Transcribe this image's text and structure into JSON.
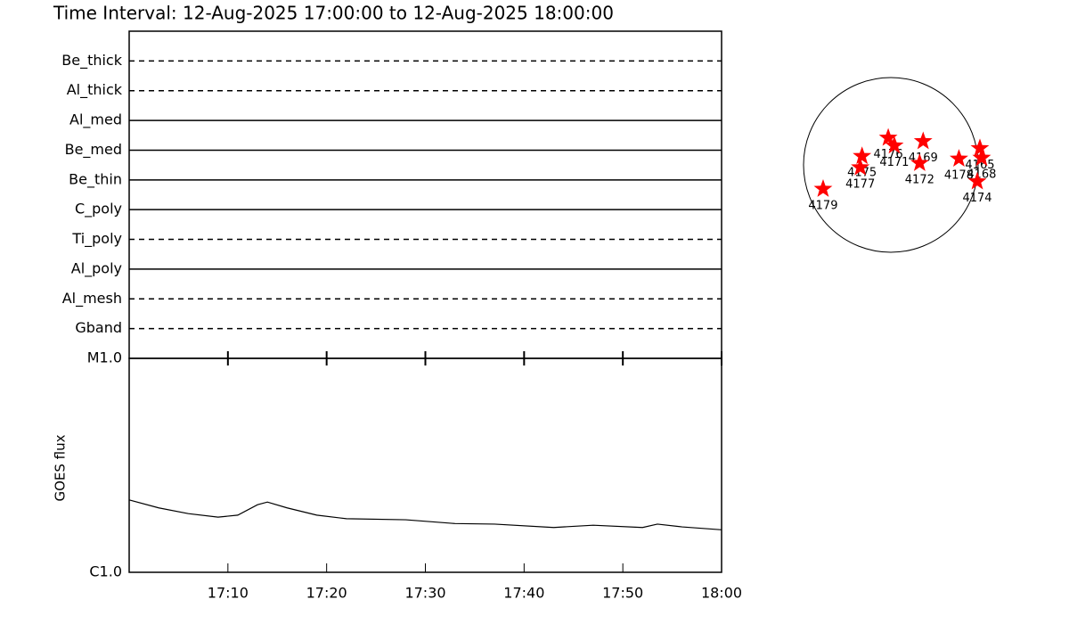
{
  "chart_data": [
    {
      "type": "coverage",
      "title": "Time Interval: 12-Aug-2025 17:00:00 to 12-Aug-2025 18:00:00",
      "categories": [
        "Be_thick",
        "Al_thick",
        "Al_med",
        "Be_med",
        "Be_thin",
        "C_poly",
        "Ti_poly",
        "Al_poly",
        "Al_mesh",
        "Gband"
      ],
      "styles": [
        "dashed",
        "dashed",
        "solid",
        "solid",
        "solid",
        "solid",
        "dashed",
        "solid",
        "dashed",
        "dashed"
      ],
      "color": "#000000"
    },
    {
      "type": "line",
      "ylabel": "GOES flux",
      "log": true,
      "color": "#000000",
      "x": [
        0,
        3,
        6,
        9,
        11,
        13,
        14,
        16,
        19,
        22,
        28,
        33,
        37,
        43,
        47,
        52,
        53.5,
        56,
        60
      ],
      "values": [
        2.18e-06,
        2e-06,
        1.88e-06,
        1.81e-06,
        1.85e-06,
        2.07e-06,
        2.13e-06,
        2e-06,
        1.85e-06,
        1.78e-06,
        1.76e-06,
        1.69e-06,
        1.68e-06,
        1.62e-06,
        1.66e-06,
        1.62e-06,
        1.68e-06,
        1.63e-06,
        1.58e-06
      ],
      "xlim": [
        0,
        60
      ],
      "xticks": [
        {
          "value": 10,
          "label": "17:10"
        },
        {
          "value": 20,
          "label": "17:20"
        },
        {
          "value": 30,
          "label": "17:30"
        },
        {
          "value": 40,
          "label": "17:40"
        },
        {
          "value": 50,
          "label": "17:50"
        },
        {
          "value": 60,
          "label": "18:00"
        }
      ],
      "ylim": [
        1e-06,
        1e-05
      ],
      "yticks": [
        {
          "value": 1e-06,
          "label": "C1.0"
        },
        {
          "value": 1e-05,
          "label": "M1.0"
        }
      ]
    },
    {
      "type": "scatter",
      "color": "#ff0000",
      "xlim": [
        -1,
        1
      ],
      "ylim": [
        -1,
        1
      ],
      "labels": [
        "4179",
        "4175",
        "4177",
        "4176",
        "4171",
        "4169",
        "4172",
        "4178",
        "4165",
        "4168",
        "4174"
      ],
      "x": [
        -0.776,
        -0.33,
        -0.35,
        -0.03,
        0.04,
        0.37,
        0.33,
        0.78,
        1.02,
        1.04,
        0.99
      ],
      "values": [
        -0.276,
        0.1,
        -0.03,
        0.31,
        0.22,
        0.27,
        0.02,
        0.07,
        0.19,
        0.08,
        -0.19
      ]
    }
  ]
}
